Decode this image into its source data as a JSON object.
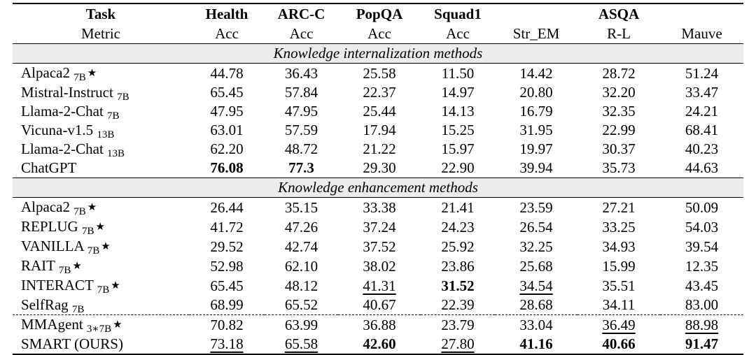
{
  "header": {
    "tasks": [
      "Task",
      "Health",
      "ARC-C",
      "PopQA",
      "Squad1",
      "",
      "ASQA",
      ""
    ],
    "metrics": [
      "Metric",
      "Acc",
      "Acc",
      "Acc",
      "Acc",
      "Str_EM",
      "R-L",
      "Mauve"
    ]
  },
  "sections": [
    {
      "title": "Knowledge internalization methods",
      "rows": [
        {
          "name": "Alpaca2",
          "sub": "7B",
          "star": true,
          "values": [
            "44.78",
            "36.43",
            "25.58",
            "11.50",
            "14.42",
            "28.72",
            "51.24"
          ],
          "bold": [],
          "underline": []
        },
        {
          "name": "Mistral-Instruct",
          "sub": "7B",
          "star": false,
          "values": [
            "65.45",
            "57.84",
            "22.37",
            "14.97",
            "20.80",
            "32.20",
            "33.47"
          ],
          "bold": [],
          "underline": []
        },
        {
          "name": "Llama-2-Chat",
          "sub": "7B",
          "star": false,
          "values": [
            "47.95",
            "47.95",
            "25.44",
            "14.13",
            "16.79",
            "32.35",
            "24.21"
          ],
          "bold": [],
          "underline": []
        },
        {
          "name": "Vicuna-v1.5",
          "sub": "13B",
          "star": false,
          "values": [
            "63.01",
            "57.59",
            "17.94",
            "15.25",
            "31.95",
            "22.99",
            "68.41"
          ],
          "bold": [],
          "underline": []
        },
        {
          "name": "Llama-2-Chat",
          "sub": "13B",
          "star": false,
          "values": [
            "62.20",
            "48.72",
            "21.22",
            "15.97",
            "19.97",
            "30.37",
            "40.23"
          ],
          "bold": [],
          "underline": []
        },
        {
          "name": "ChatGPT",
          "sub": "",
          "star": false,
          "values": [
            "76.08",
            "77.3",
            "29.30",
            "22.90",
            "39.94",
            "35.73",
            "44.63"
          ],
          "bold": [
            0,
            1
          ],
          "underline": []
        }
      ]
    },
    {
      "title": "Knowledge enhancement methods",
      "rows": [
        {
          "name": "Alpaca2",
          "sub": "7B",
          "star": true,
          "values": [
            "26.44",
            "35.15",
            "33.38",
            "21.41",
            "23.59",
            "27.21",
            "50.09"
          ],
          "bold": [],
          "underline": []
        },
        {
          "name": "REPLUG",
          "sub": "7B",
          "star": true,
          "values": [
            "41.72",
            "47.26",
            "37.24",
            "24.23",
            "26.54",
            "33.25",
            "54.03"
          ],
          "bold": [],
          "underline": []
        },
        {
          "name": "VANILLA",
          "sub": "7B",
          "star": true,
          "values": [
            "29.52",
            "42.74",
            "37.52",
            "25.92",
            "32.25",
            "34.93",
            "39.54"
          ],
          "bold": [],
          "underline": []
        },
        {
          "name": "RAIT",
          "sub": "7B",
          "star": true,
          "values": [
            "52.98",
            "62.10",
            "38.02",
            "23.86",
            "25.68",
            "15.99",
            "12.35"
          ],
          "bold": [],
          "underline": []
        },
        {
          "name": "INTERACT",
          "sub": "7B",
          "star": true,
          "values": [
            "65.45",
            "48.12",
            "41.31",
            "31.52",
            "34.54",
            "35.51",
            "43.45"
          ],
          "bold": [
            3
          ],
          "underline": [
            2,
            4
          ]
        },
        {
          "name": "SelfRag",
          "sub": "7B",
          "star": false,
          "values": [
            "68.99",
            "65.52",
            "40.67",
            "22.39",
            "28.68",
            "34.11",
            "83.00"
          ],
          "bold": [],
          "underline": []
        },
        {
          "name": "MMAgent",
          "sub": "3∗7B",
          "star": true,
          "values": [
            "70.82",
            "63.99",
            "36.88",
            "23.79",
            "33.04",
            "36.49",
            "88.98"
          ],
          "bold": [],
          "underline": [
            5,
            6
          ],
          "dashed_top": true
        },
        {
          "name": "SMART (OURS)",
          "sub": "",
          "star": false,
          "values": [
            "73.18",
            "65.58",
            "42.60",
            "27.80",
            "41.16",
            "40.66",
            "91.47"
          ],
          "bold": [
            2,
            4,
            5,
            6
          ],
          "underline": [
            0,
            1,
            3
          ]
        }
      ]
    }
  ]
}
